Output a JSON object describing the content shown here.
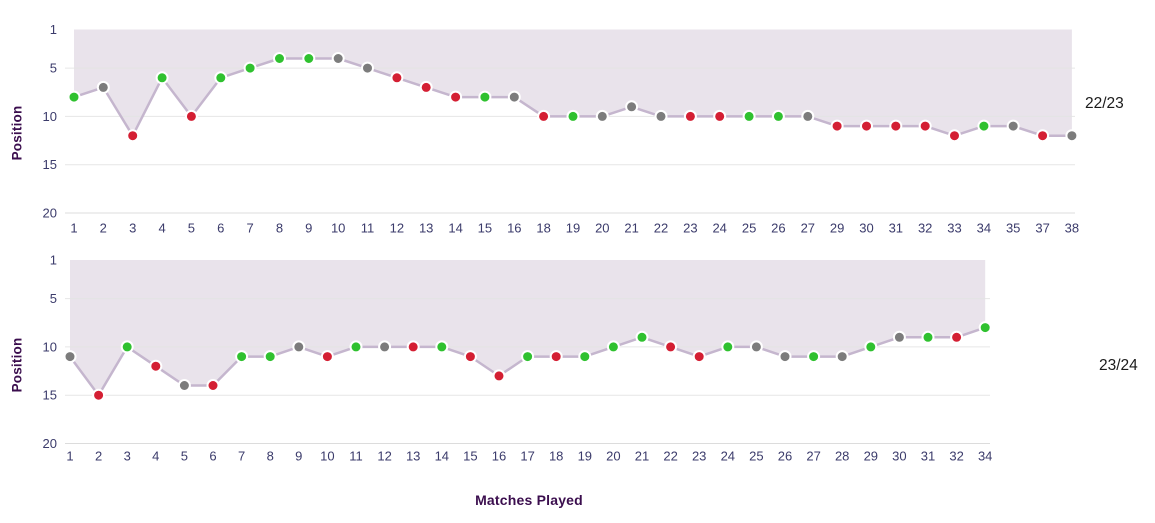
{
  "axes": {
    "ylabel": "Position",
    "xlabel": "Matches Played",
    "y_ticks": [
      1,
      5,
      10,
      15,
      20
    ]
  },
  "colors": {
    "win": "#2fc12f",
    "loss": "#d41f33",
    "draw": "#7c7c7c",
    "line": "#c5b6ce",
    "fill": "#e9e3eb",
    "grid": "#e3e3e3",
    "axis_line": "#d8d8d8",
    "tick_text": "#3b3b6b",
    "axis_title": "#3b0e4e",
    "season_text": "#1b1b1b"
  },
  "chart_data": [
    {
      "type": "line",
      "season_label": "22/23",
      "title": "",
      "xlabel": "Matches Played",
      "ylabel": "Position",
      "y_inverted": true,
      "ylim": [
        1,
        20
      ],
      "y_ticks": [
        1,
        5,
        10,
        15,
        20
      ],
      "x": [
        1,
        2,
        3,
        4,
        5,
        6,
        7,
        8,
        9,
        10,
        11,
        12,
        13,
        14,
        15,
        16,
        18,
        19,
        20,
        21,
        22,
        23,
        24,
        25,
        26,
        27,
        29,
        30,
        31,
        32,
        33,
        34,
        35,
        37,
        38
      ],
      "positions": [
        8,
        7,
        12,
        6,
        10,
        6,
        5,
        4,
        4,
        4,
        5,
        6,
        7,
        8,
        8,
        8,
        10,
        10,
        10,
        9,
        10,
        10,
        10,
        10,
        10,
        10,
        11,
        11,
        11,
        11,
        12,
        11,
        11,
        12,
        12
      ],
      "results": [
        "win",
        "draw",
        "loss",
        "win",
        "loss",
        "win",
        "win",
        "win",
        "win",
        "draw",
        "draw",
        "loss",
        "loss",
        "loss",
        "win",
        "draw",
        "loss",
        "win",
        "draw",
        "draw",
        "draw",
        "loss",
        "loss",
        "win",
        "win",
        "draw",
        "loss",
        "loss",
        "loss",
        "loss",
        "loss",
        "win",
        "draw",
        "loss",
        "draw"
      ]
    },
    {
      "type": "line",
      "season_label": "23/24",
      "title": "",
      "xlabel": "Matches Played",
      "ylabel": "Position",
      "y_inverted": true,
      "ylim": [
        1,
        20
      ],
      "y_ticks": [
        1,
        5,
        10,
        15,
        20
      ],
      "x": [
        1,
        2,
        3,
        4,
        5,
        6,
        7,
        8,
        9,
        10,
        11,
        12,
        13,
        14,
        15,
        16,
        17,
        18,
        19,
        20,
        21,
        22,
        23,
        24,
        25,
        26,
        27,
        28,
        29,
        30,
        31,
        32,
        34
      ],
      "positions": [
        11,
        15,
        10,
        12,
        14,
        14,
        11,
        11,
        10,
        11,
        10,
        10,
        10,
        10,
        11,
        13,
        11,
        11,
        11,
        10,
        9,
        10,
        11,
        10,
        10,
        11,
        11,
        11,
        10,
        9,
        9,
        9,
        8
      ],
      "results": [
        "draw",
        "loss",
        "win",
        "loss",
        "draw",
        "loss",
        "win",
        "win",
        "draw",
        "loss",
        "win",
        "draw",
        "loss",
        "win",
        "loss",
        "loss",
        "win",
        "loss",
        "win",
        "win",
        "win",
        "loss",
        "loss",
        "win",
        "draw",
        "draw",
        "win",
        "draw",
        "win",
        "draw",
        "win",
        "loss",
        "win"
      ]
    }
  ]
}
